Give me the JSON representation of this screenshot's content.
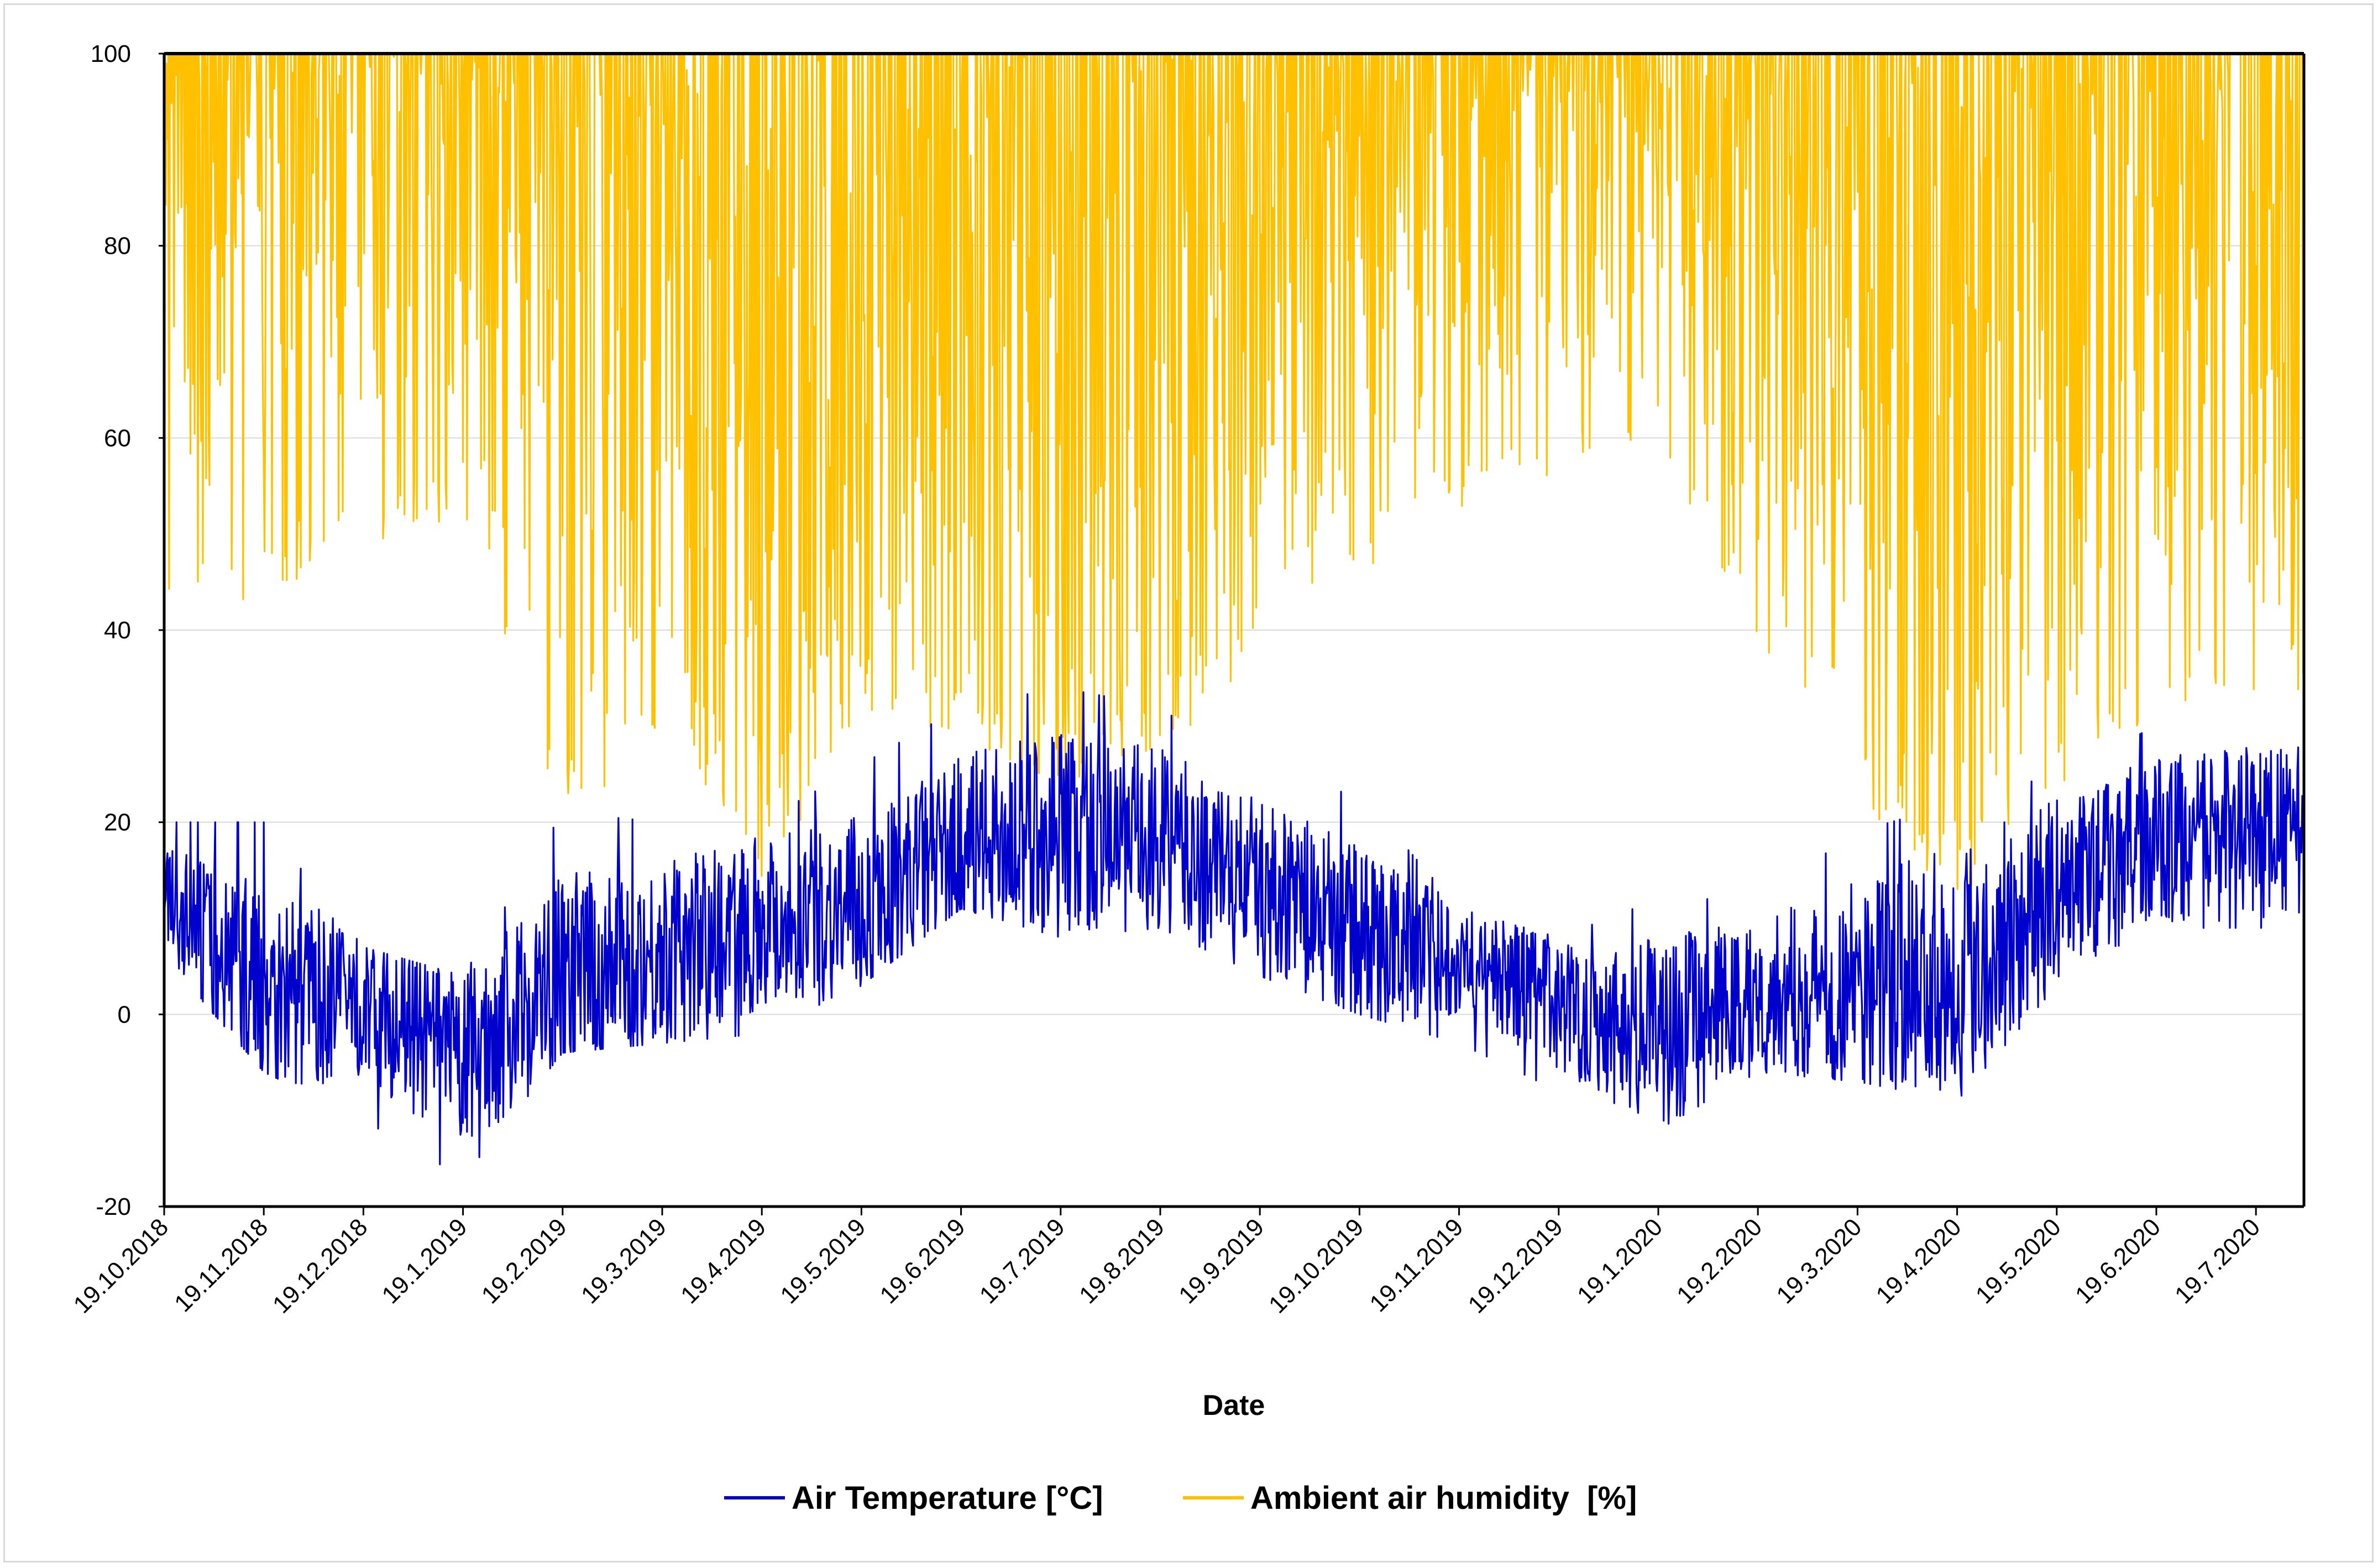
{
  "chart_data": {
    "type": "line",
    "title": "",
    "xlabel": "Date",
    "ylabel": "",
    "ylim": [
      -20,
      100
    ],
    "yticks": [
      -20,
      0,
      20,
      40,
      60,
      80,
      100
    ],
    "grid": true,
    "legend_position": "bottom-center",
    "categories": [
      "19.10.2018",
      "19.11.2018",
      "19.12.2018",
      "19.1.2019",
      "19.2.2019",
      "19.3.2019",
      "19.4.2019",
      "19.5.2019",
      "19.6.2019",
      "19.7.2019",
      "19.8.2019",
      "19.9.2019",
      "19.10.2019",
      "19.11.2019",
      "19.12.2019",
      "19.1.2020",
      "19.2.2020",
      "19.3.2020",
      "19.4.2020",
      "19.5.2020",
      "19.6.2020",
      "19.7.2020"
    ],
    "series": [
      {
        "name": "Air Temperature [°C]",
        "color": "#0000CC",
        "values": [
          12,
          3,
          1,
          -5,
          4,
          6,
          10,
          11,
          18,
          19,
          18,
          14,
          8,
          6,
          1,
          -2,
          2,
          3,
          5,
          13,
          18,
          19
        ],
        "min": [
          6,
          -6,
          -11,
          -17,
          -4,
          -3,
          -2,
          3,
          11,
          8,
          9,
          4,
          0,
          -3,
          -8,
          -12,
          -6,
          -7,
          -9,
          3,
          9,
          9
        ],
        "max": [
          20,
          20,
          7,
          4,
          21,
          20,
          20,
          26,
          32,
          34,
          32,
          24,
          23,
          11,
          8,
          12,
          12,
          19,
          22,
          25,
          30,
          30
        ]
      },
      {
        "name": "Ambient air humidity  [%]",
        "color": "#FFC000",
        "values": [
          82,
          88,
          92,
          90,
          70,
          68,
          62,
          68,
          65,
          62,
          64,
          75,
          85,
          90,
          92,
          88,
          80,
          62,
          55,
          72,
          80,
          78
        ],
        "min": [
          40,
          44,
          48,
          52,
          20,
          28,
          12,
          32,
          29,
          24,
          28,
          35,
          46,
          52,
          55,
          60,
          38,
          22,
          12,
          22,
          32,
          33
        ],
        "max": [
          100,
          100,
          100,
          100,
          100,
          100,
          100,
          100,
          100,
          100,
          100,
          100,
          100,
          100,
          100,
          100,
          100,
          100,
          100,
          100,
          100,
          100
        ]
      }
    ]
  }
}
